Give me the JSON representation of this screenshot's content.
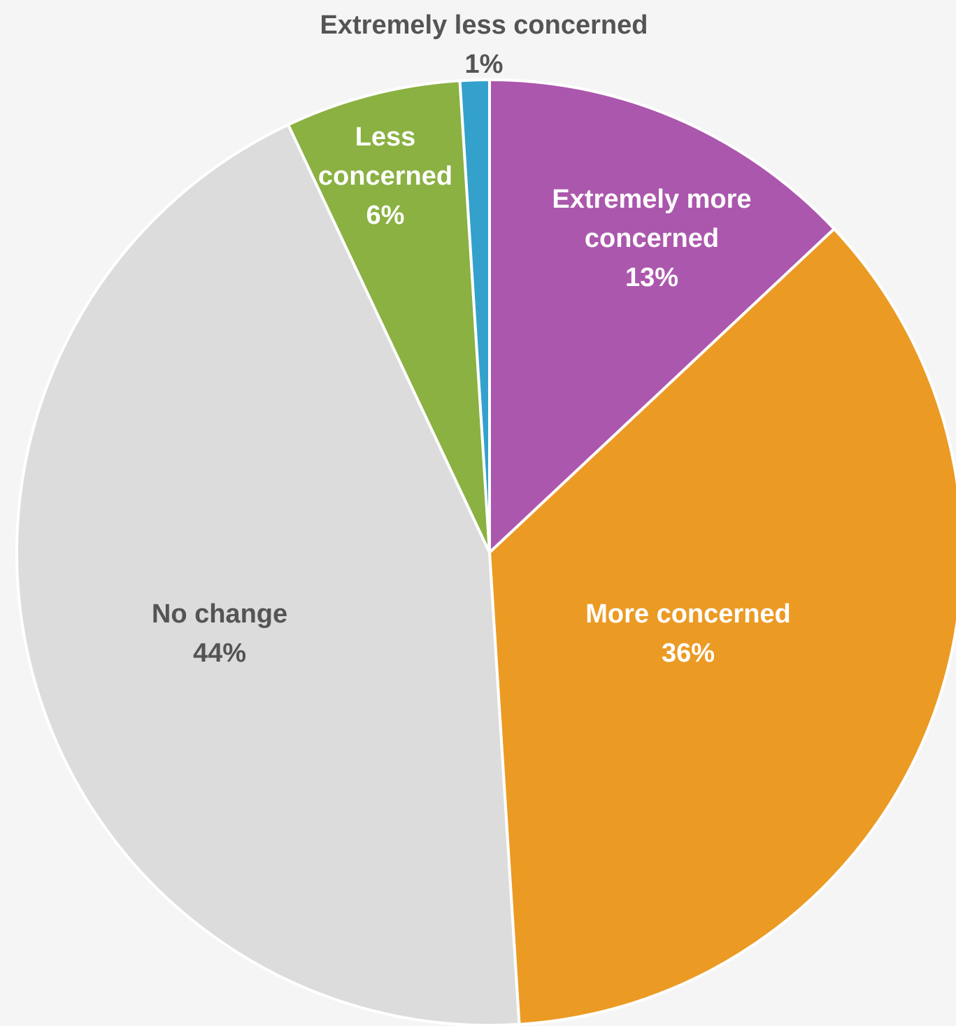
{
  "chart_data": {
    "type": "pie",
    "start_angle_deg": 0,
    "direction": "clockwise",
    "slices": [
      {
        "label_lines": [
          "Extremely more",
          "concerned"
        ],
        "percent_label": "13%",
        "value": 13,
        "color": "#ab57ad",
        "label_color": "#ffffff"
      },
      {
        "label_lines": [
          "More concerned"
        ],
        "percent_label": "36%",
        "value": 36,
        "color": "#eb9a24",
        "label_color": "#ffffff"
      },
      {
        "label_lines": [
          "No change"
        ],
        "percent_label": "44%",
        "value": 44,
        "color": "#dcdcdc",
        "label_color": "#545454"
      },
      {
        "label_lines": [
          "Less",
          "concerned"
        ],
        "percent_label": "6%",
        "value": 6,
        "color": "#8ab142",
        "label_color": "#ffffff"
      },
      {
        "label_lines": [
          "Extremely less concerned"
        ],
        "percent_label": "1%",
        "value": 1,
        "color": "#34a1cc",
        "label_color": "#545454"
      }
    ]
  }
}
